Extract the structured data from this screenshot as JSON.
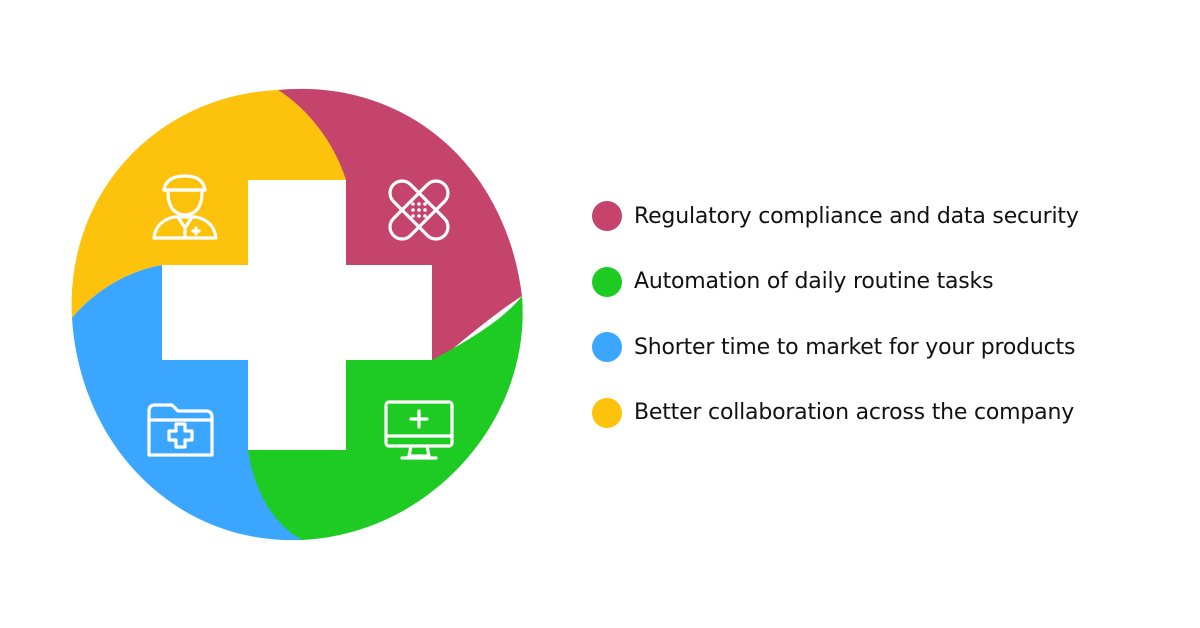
{
  "colors": {
    "crimson": "#c4446b",
    "green": "#1ecb22",
    "blue": "#3aa6ff",
    "yellow": "#fdc20b",
    "white": "#ffffff"
  },
  "icons": {
    "top_left": "doctor-icon",
    "top_right": "bandage-icon",
    "bottom_left": "medical-folder-icon",
    "bottom_right": "medical-monitor-icon",
    "center": "medical-cross-icon"
  },
  "legend": [
    {
      "label": "Regulatory compliance and data security",
      "color": "#c4446b"
    },
    {
      "label": "Automation of daily routine tasks",
      "color": "#1ecb22"
    },
    {
      "label": "Shorter time to market for your products",
      "color": "#3aa6ff"
    },
    {
      "label": "Better collaboration across the company",
      "color": "#fdc20b"
    }
  ]
}
